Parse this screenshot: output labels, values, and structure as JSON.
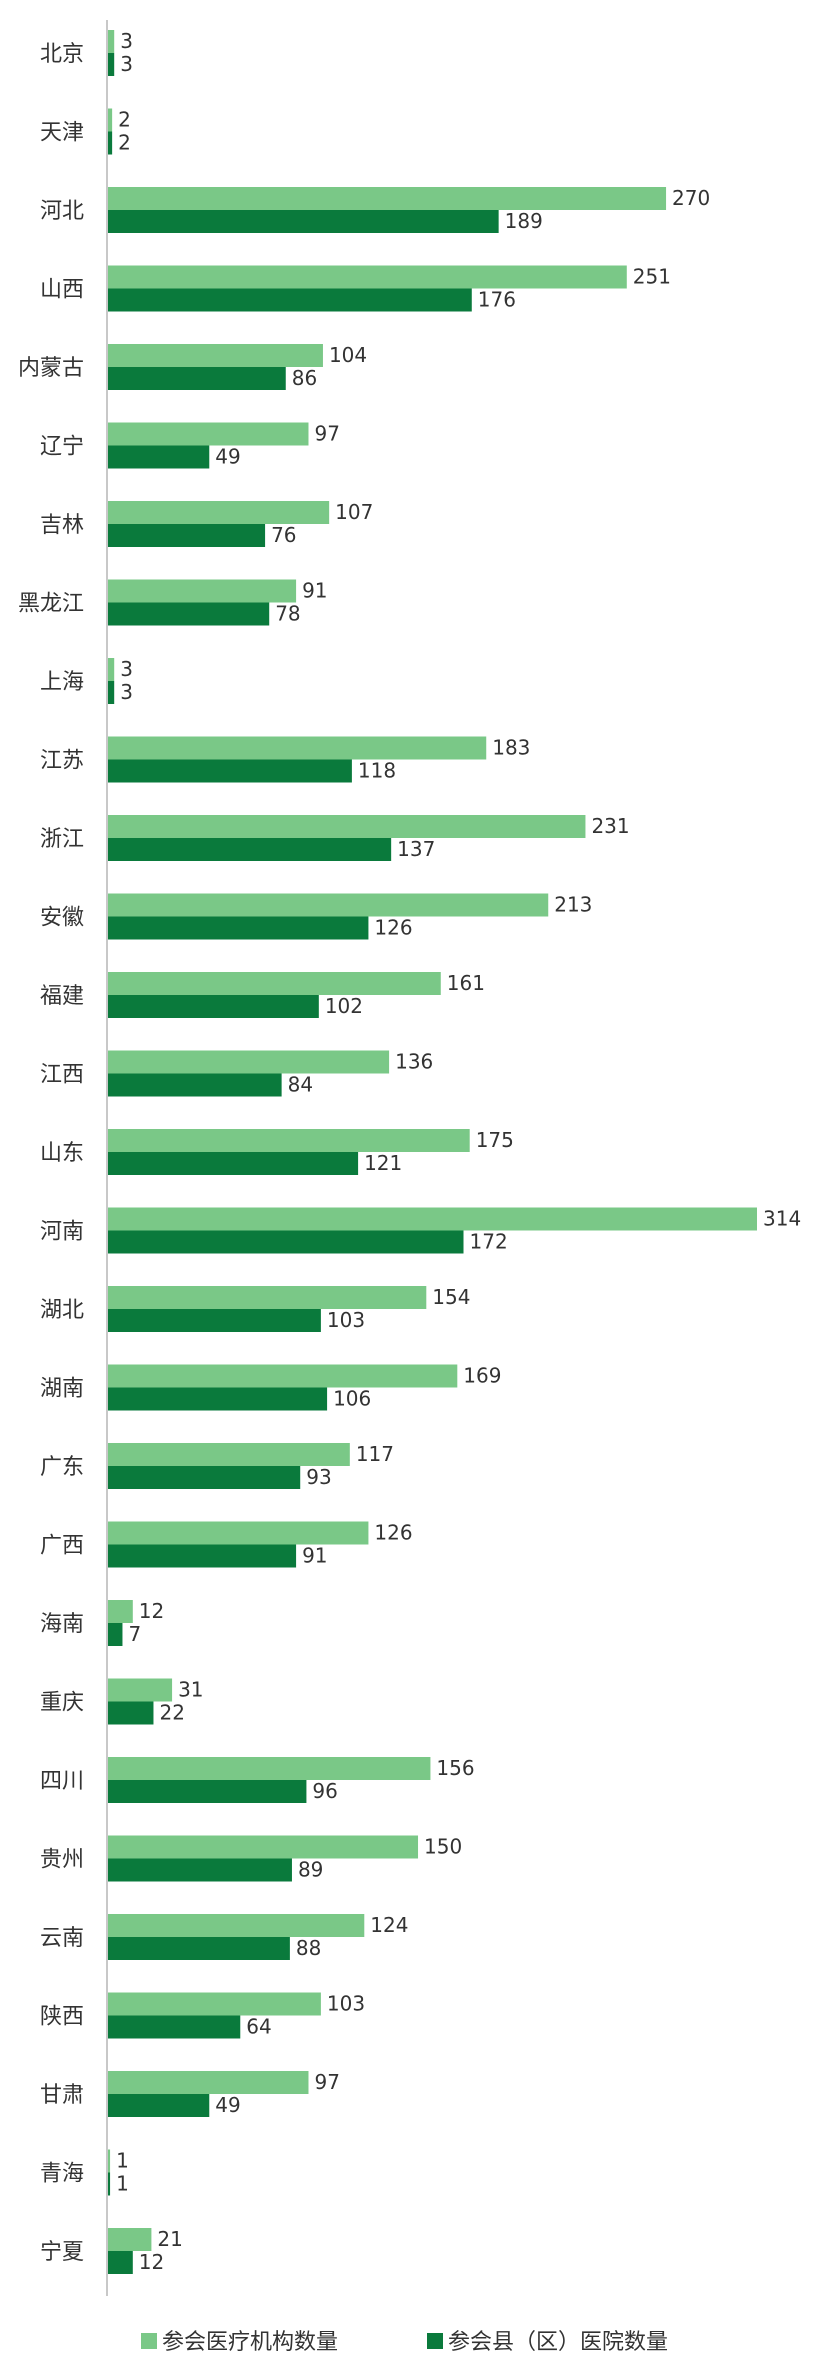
{
  "chart_data": {
    "type": "bar",
    "orientation": "horizontal",
    "categories": [
      "北京",
      "天津",
      "河北",
      "山西",
      "内蒙古",
      "辽宁",
      "吉林",
      "黑龙江",
      "上海",
      "江苏",
      "浙江",
      "安徽",
      "福建",
      "江西",
      "山东",
      "河南",
      "湖北",
      "湖南",
      "广东",
      "广西",
      "海南",
      "重庆",
      "四川",
      "贵州",
      "云南",
      "陕西",
      "甘肃",
      "青海",
      "宁夏"
    ],
    "series": [
      {
        "name": "参会医疗机构数量",
        "color": "#7ac887",
        "values": [
          3,
          2,
          270,
          251,
          104,
          97,
          107,
          91,
          3,
          183,
          231,
          213,
          161,
          136,
          175,
          314,
          154,
          169,
          117,
          126,
          12,
          31,
          156,
          150,
          124,
          103,
          97,
          1,
          21
        ]
      },
      {
        "name": "参会县（区）医院数量",
        "color": "#0a7a3c",
        "values": [
          3,
          2,
          189,
          176,
          86,
          49,
          76,
          78,
          3,
          118,
          137,
          126,
          102,
          84,
          121,
          172,
          103,
          106,
          93,
          91,
          7,
          22,
          96,
          89,
          88,
          64,
          49,
          1,
          12
        ]
      }
    ],
    "xlim": [
      0,
      314
    ],
    "grid": false,
    "legend_position": "bottom"
  }
}
